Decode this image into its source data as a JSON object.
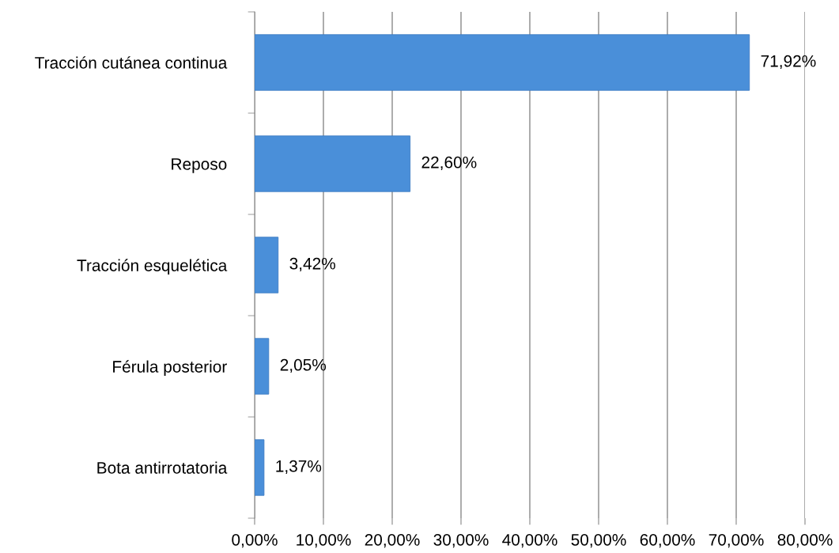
{
  "chart_data": {
    "type": "bar",
    "orientation": "horizontal",
    "categories": [
      "Tracción cutánea continua",
      "Reposo",
      "Tracción esquelética",
      "Férula posterior",
      "Bota antirrotatoria"
    ],
    "values": [
      71.92,
      22.6,
      3.42,
      2.05,
      1.37
    ],
    "value_labels": [
      "71,92%",
      "22,60%",
      "3,42%",
      "2,05%",
      "1,37%"
    ],
    "color": "#4a8fd9",
    "xlim": [
      0,
      80
    ],
    "xticks": [
      {
        "value": 0,
        "label": "0,00%"
      },
      {
        "value": 10,
        "label": "10,00%"
      },
      {
        "value": 20,
        "label": "20,00%"
      },
      {
        "value": 30,
        "label": "30,00%"
      },
      {
        "value": 40,
        "label": "40,00%"
      },
      {
        "value": 50,
        "label": "50,00%"
      },
      {
        "value": 60,
        "label": "60,00%"
      },
      {
        "value": 70,
        "label": "70,00%"
      },
      {
        "value": 80,
        "label": "80,00%"
      }
    ],
    "grid": "x",
    "legend": false
  }
}
